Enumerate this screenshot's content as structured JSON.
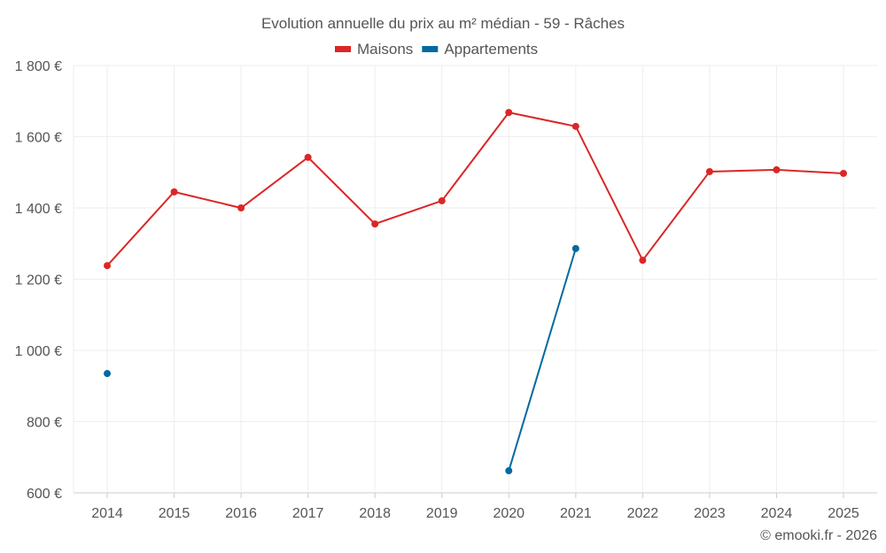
{
  "chart_data": {
    "type": "line",
    "title": "Evolution annuelle du prix au m² médian - 59 - Râches",
    "categories": [
      "2014",
      "2015",
      "2016",
      "2017",
      "2018",
      "2019",
      "2020",
      "2021",
      "2022",
      "2023",
      "2024",
      "2025"
    ],
    "series": [
      {
        "name": "Maisons",
        "color": "#dc2626",
        "values": [
          1238,
          1445,
          1400,
          1542,
          1355,
          1420,
          1668,
          1629,
          1253,
          1502,
          1507,
          1497
        ]
      },
      {
        "name": "Appartements",
        "color": "#0369a1",
        "values": [
          935,
          null,
          null,
          null,
          null,
          null,
          662,
          1286,
          null,
          null,
          null,
          null
        ]
      }
    ],
    "yticks": [
      600,
      800,
      1000,
      1200,
      1400,
      1600,
      1800
    ],
    "ytick_labels": [
      "600 €",
      "800 €",
      "1 000 €",
      "1 200 €",
      "1 400 €",
      "1 600 €",
      "1 800 €"
    ],
    "ylim": [
      600,
      1800
    ],
    "xlabel": "",
    "ylabel": "",
    "grid": true,
    "legend": "top-center"
  },
  "credit": "© emooki.fr - 2026"
}
